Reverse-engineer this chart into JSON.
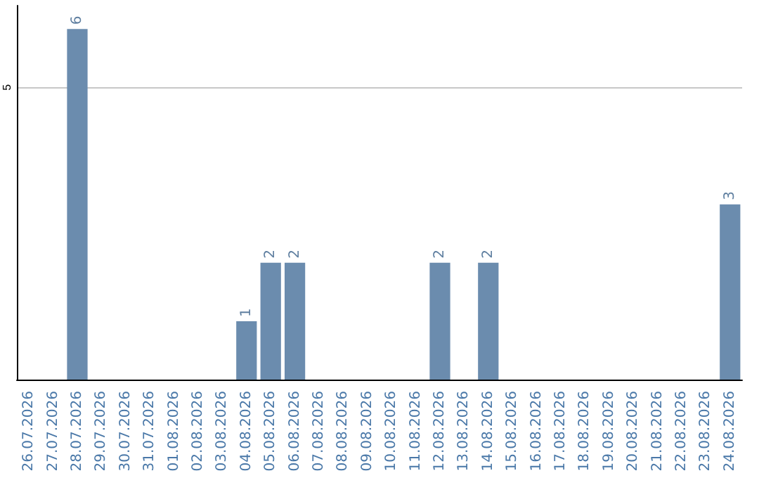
{
  "chart_data": {
    "type": "bar",
    "categories": [
      "26.07.2026",
      "27.07.2026",
      "28.07.2026",
      "29.07.2026",
      "30.07.2026",
      "31.07.2026",
      "01.08.2026",
      "02.08.2026",
      "03.08.2026",
      "04.08.2026",
      "05.08.2026",
      "06.08.2026",
      "07.08.2026",
      "08.08.2026",
      "09.08.2026",
      "10.08.2026",
      "11.08.2026",
      "12.08.2026",
      "13.08.2026",
      "14.08.2026",
      "15.08.2026",
      "16.08.2026",
      "17.08.2026",
      "18.08.2026",
      "19.08.2026",
      "20.08.2026",
      "21.08.2026",
      "22.08.2026",
      "23.08.2026",
      "24.08.2026"
    ],
    "values": [
      0,
      0,
      6,
      0,
      0,
      0,
      0,
      0,
      0,
      1,
      2,
      2,
      0,
      0,
      0,
      0,
      0,
      2,
      0,
      2,
      0,
      0,
      0,
      0,
      0,
      0,
      0,
      0,
      0,
      3
    ],
    "value_labels": [
      null,
      null,
      "6",
      null,
      null,
      null,
      null,
      null,
      null,
      "1",
      "2",
      "2",
      null,
      null,
      null,
      null,
      null,
      "2",
      null,
      "2",
      null,
      null,
      null,
      null,
      null,
      null,
      null,
      null,
      null,
      "3"
    ],
    "color": "#6b8cae",
    "ylim": [
      0,
      6.4
    ],
    "yticks": [
      5
    ],
    "grid": "y"
  }
}
